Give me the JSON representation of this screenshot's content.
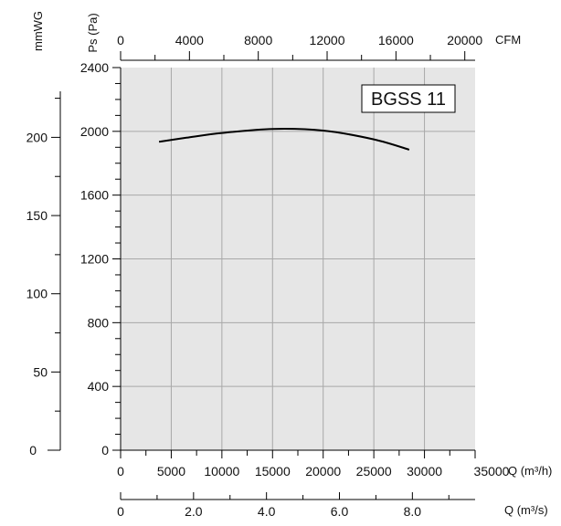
{
  "chart_data": {
    "type": "line",
    "title": "BGSS 11",
    "series": [
      {
        "x": [
          3800,
          6500,
          10000,
          15000,
          20000,
          25000,
          28500
        ],
        "values": [
          1935,
          1960,
          1990,
          2015,
          2005,
          1950,
          1885
        ]
      }
    ],
    "x_axis": {
      "label": "Q (m³/h)",
      "range": [
        0,
        35000
      ],
      "ticks": [
        "0",
        "5000",
        "10000",
        "15000",
        "20000",
        "25000",
        "30000",
        "35000"
      ]
    },
    "y_axis": {
      "label": "Ps (Pa)",
      "range": [
        0,
        2400
      ],
      "ticks": [
        "0",
        "400",
        "800",
        "1200",
        "1600",
        "2000",
        "2400"
      ]
    },
    "top_axis": {
      "label": "CFM",
      "range": [
        0,
        20600
      ],
      "ticks": [
        "0",
        "4000",
        "8000",
        "12000",
        "16000",
        "20000"
      ]
    },
    "left_axis": {
      "label": "mmWG",
      "range": [
        0,
        244.6
      ],
      "ticks": [
        "0",
        "50",
        "100",
        "150",
        "200"
      ]
    },
    "bottom_axis": {
      "label": "Q (m³/s)",
      "range": [
        0,
        9.72
      ],
      "ticks": [
        "0",
        "2.0",
        "4.0",
        "6.0",
        "8.0"
      ]
    },
    "grid": true
  }
}
